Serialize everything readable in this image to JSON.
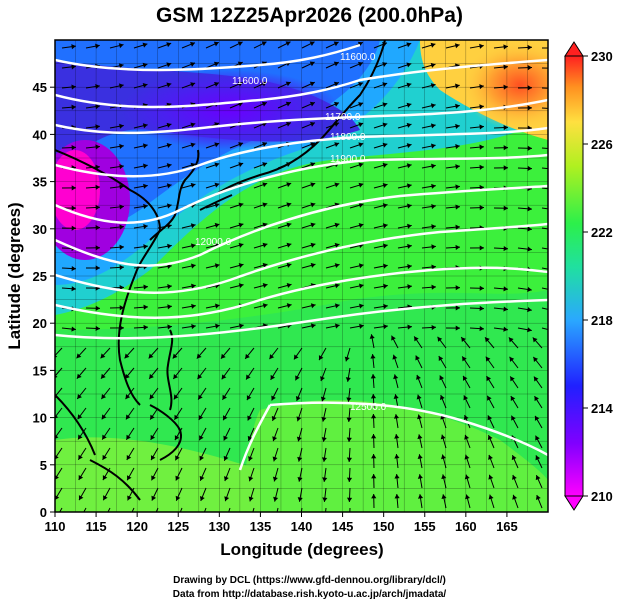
{
  "title": "GSM 12Z25Apr2026 (200.0hPa)",
  "map": {
    "x_axis": {
      "title": "Longitude (degrees)",
      "range": [
        110,
        170
      ],
      "ticks": [
        110,
        115,
        120,
        125,
        130,
        135,
        140,
        145,
        150,
        155,
        160,
        165
      ],
      "tick_labels": [
        "110",
        "115",
        "120",
        "125",
        "130",
        "135",
        "140",
        "145",
        "150",
        "155",
        "160",
        "165"
      ]
    },
    "y_axis": {
      "title": "Latitude (degrees)",
      "range": [
        0,
        50
      ],
      "ticks": [
        0,
        5,
        10,
        15,
        20,
        25,
        30,
        35,
        40,
        45
      ],
      "tick_labels": [
        "0",
        "5",
        "10",
        "15",
        "20",
        "25",
        "30",
        "35",
        "40",
        "45"
      ]
    },
    "grid": true,
    "field": "temperature (shaded), geopotential height (contours), wind (streamlines)",
    "contour_labels": [
      "11600.0",
      "11600.0",
      "11700.0",
      "11800.0",
      "11900.0",
      "12000.0",
      "12500.0"
    ]
  },
  "colorbar": {
    "range": [
      210,
      230
    ],
    "tick_labels": [
      "230",
      "226",
      "222",
      "218",
      "214",
      "210"
    ],
    "colors": [
      "#ff00ff",
      "#2020ff",
      "#2aa8ff",
      "#2cf04a",
      "#ffe040",
      "#ff2020"
    ]
  },
  "credits": {
    "drawing": "Drawing by DCL (https://www.gfd-dennou.org/library/dcl/)",
    "data": "Data from http://database.rish.kyoto-u.ac.jp/arch/jmadata/"
  }
}
